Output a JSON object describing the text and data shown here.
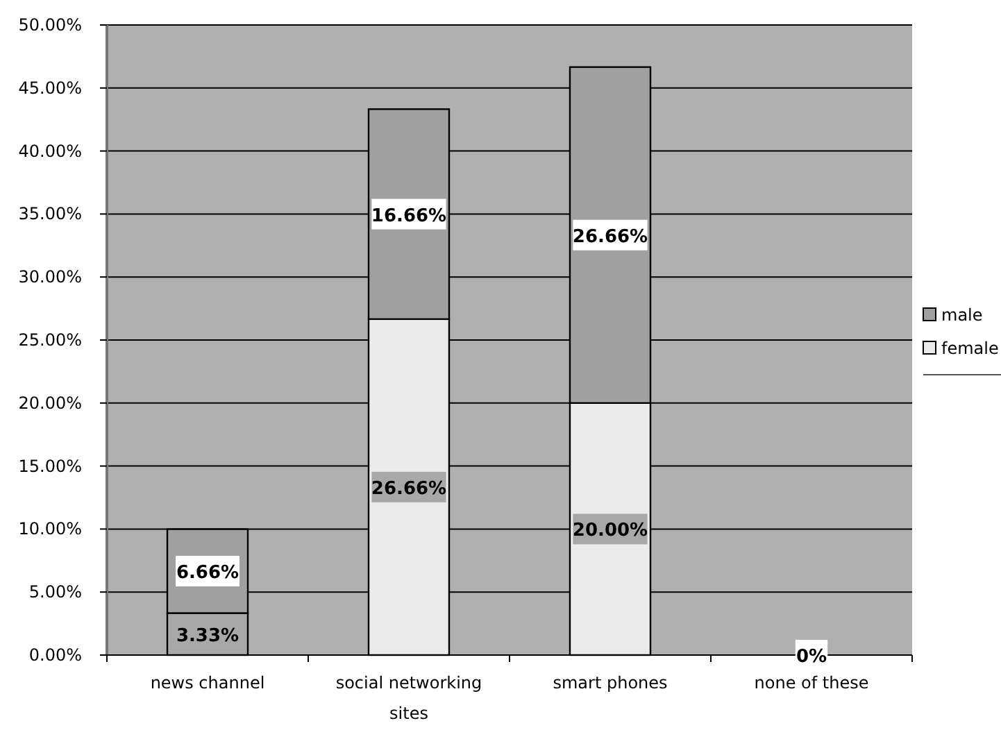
{
  "chart_data": {
    "type": "bar",
    "stacked": true,
    "categories": [
      "news channel",
      "social networking sites",
      "smart phones",
      "none of these"
    ],
    "series": [
      {
        "name": "female",
        "color": "#ebebeb",
        "colors": [
          "#a8a8a8",
          "#ebebeb",
          "#ebebeb",
          "#ebebeb"
        ],
        "values": [
          3.33,
          26.66,
          20,
          0
        ],
        "value_labels": [
          "3.33%",
          "26.66%",
          "20.00%",
          null
        ]
      },
      {
        "name": "male",
        "color": "#a0a0a0",
        "values": [
          6.66,
          16.66,
          26.66,
          0
        ],
        "value_labels": [
          "6.66%",
          "16.66%",
          "26.66%",
          "0%"
        ]
      }
    ],
    "ylim": [
      0,
      50
    ],
    "yticks": [
      {
        "value": 0,
        "label": "0.00%"
      },
      {
        "value": 5,
        "label": "5.00%"
      },
      {
        "value": 10,
        "label": "10.00%"
      },
      {
        "value": 15,
        "label": "15.00%"
      },
      {
        "value": 20,
        "label": "20.00%"
      },
      {
        "value": 25,
        "label": "25.00%"
      },
      {
        "value": 30,
        "label": "30.00%"
      },
      {
        "value": 35,
        "label": "35.00%"
      },
      {
        "value": 40,
        "label": "40.00%"
      },
      {
        "value": 45,
        "label": "45.00%"
      },
      {
        "value": 50,
        "label": "50.00%"
      }
    ],
    "grid": "y",
    "legend": "right"
  }
}
